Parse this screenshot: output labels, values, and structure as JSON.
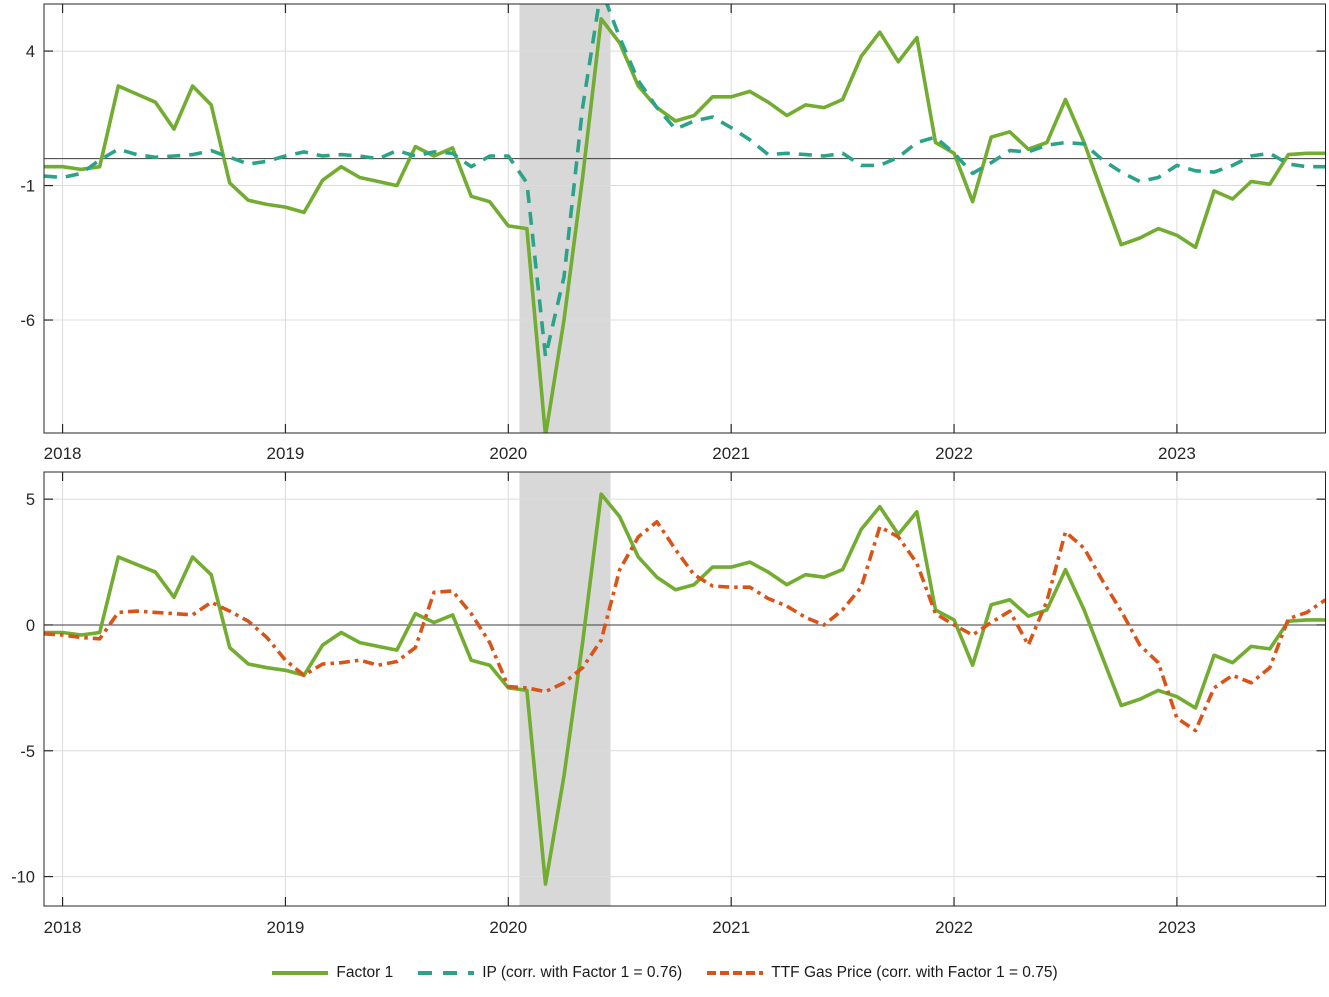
{
  "chart_data": {
    "type": "line",
    "title": "",
    "x_start_month": "2017-12",
    "x_range_months": [
      -1,
      68
    ],
    "xticks": {
      "month_index": [
        0,
        12,
        24,
        36,
        48,
        60
      ],
      "labels": [
        "2018",
        "2019",
        "2020",
        "2021",
        "2022",
        "2023"
      ]
    },
    "recession_band": {
      "months": [
        24.6,
        29.5
      ],
      "color": "#d8d8d8"
    },
    "colors": {
      "axis": "#262626",
      "grid": "#dcdcdc",
      "zero_line": "#3d3d3d",
      "background": "#ffffff",
      "tick_text": "#262626"
    },
    "panels": [
      {
        "id": "top",
        "ylim": [
          -10.2,
          5.75
        ],
        "yticks": [
          4,
          -1,
          -6
        ],
        "zero_line": true,
        "grid": true,
        "series": [
          "factor1",
          "ip"
        ]
      },
      {
        "id": "bottom",
        "ylim": [
          -11.17,
          6.08
        ],
        "yticks": [
          5,
          0,
          -5,
          -10
        ],
        "zero_line": true,
        "grid": true,
        "series": [
          "factor1",
          "ttf"
        ]
      }
    ],
    "series": {
      "factor1": {
        "label": "Factor 1",
        "color": "#72AC30",
        "style": "solid",
        "values": [
          -0.3,
          -0.3,
          -0.4,
          -0.3,
          2.7,
          2.4,
          2.1,
          1.1,
          2.7,
          2.0,
          -0.9,
          -1.55,
          -1.7,
          -1.8,
          -2.0,
          -0.8,
          -0.3,
          -0.7,
          -0.85,
          -1.0,
          0.45,
          0.1,
          0.4,
          -1.4,
          -1.6,
          -2.5,
          -2.6,
          -10.3,
          -6.0,
          -0.7,
          5.2,
          4.3,
          2.7,
          1.9,
          1.4,
          1.6,
          2.3,
          2.3,
          2.5,
          2.1,
          1.6,
          2.0,
          1.9,
          2.2,
          3.8,
          4.7,
          3.6,
          4.5,
          0.6,
          0.2,
          -1.6,
          0.8,
          1.0,
          0.35,
          0.6,
          2.2,
          0.6,
          -1.3,
          -3.2,
          -2.95,
          -2.6,
          -2.85,
          -3.3,
          -1.2,
          -1.5,
          -0.85,
          -0.95,
          0.15,
          0.2,
          0.2
        ]
      },
      "ip": {
        "label": "IP (corr. with Factor 1 = 0.76)",
        "color": "#2BA389",
        "style": "dashed",
        "values": [
          -0.65,
          -0.7,
          -0.55,
          -0.05,
          0.35,
          0.15,
          0.05,
          0.1,
          0.15,
          0.3,
          0.05,
          -0.2,
          -0.1,
          0.1,
          0.25,
          0.1,
          0.15,
          0.1,
          0.0,
          0.3,
          0.1,
          0.25,
          0.2,
          -0.3,
          0.1,
          0.1,
          -0.9,
          -7.35,
          -4.4,
          1.9,
          6.3,
          4.5,
          2.9,
          1.9,
          1.1,
          1.4,
          1.55,
          1.15,
          0.7,
          0.15,
          0.2,
          0.15,
          0.1,
          0.2,
          -0.25,
          -0.25,
          0.05,
          0.6,
          0.8,
          0.2,
          -0.55,
          -0.15,
          0.3,
          0.25,
          0.5,
          0.6,
          0.55,
          -0.05,
          -0.5,
          -0.85,
          -0.7,
          -0.25,
          -0.45,
          -0.5,
          -0.25,
          0.1,
          0.2,
          -0.2,
          -0.3,
          -0.3
        ]
      },
      "ttf": {
        "label": "TTF Gas Price (corr. with Factor 1 = 0.75)",
        "color": "#D95419",
        "style": "dashdot",
        "values": [
          -0.35,
          -0.4,
          -0.5,
          -0.55,
          0.5,
          0.55,
          0.5,
          0.45,
          0.4,
          0.9,
          0.55,
          0.15,
          -0.5,
          -1.4,
          -2.0,
          -1.55,
          -1.5,
          -1.4,
          -1.6,
          -1.45,
          -0.9,
          1.3,
          1.35,
          0.45,
          -0.7,
          -2.45,
          -2.5,
          -2.65,
          -2.3,
          -1.7,
          -0.6,
          2.2,
          3.5,
          4.1,
          3.0,
          2.0,
          1.55,
          1.5,
          1.5,
          1.05,
          0.75,
          0.3,
          0.0,
          0.6,
          1.5,
          3.9,
          3.5,
          2.45,
          0.45,
          0.0,
          -0.4,
          0.1,
          0.55,
          -0.8,
          0.95,
          3.7,
          3.05,
          1.75,
          0.55,
          -0.8,
          -1.5,
          -3.7,
          -4.2,
          -2.5,
          -2.0,
          -2.3,
          -1.7,
          0.25,
          0.5,
          1.0
        ]
      }
    },
    "legend_position": "bottom-center"
  }
}
